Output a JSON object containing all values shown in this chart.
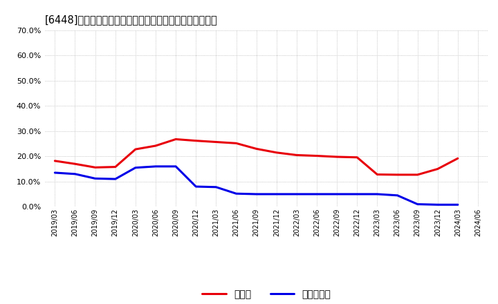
{
  "title": "[6448]　現預金、有利子負債の総資産に対する比率の推移",
  "background_color": "#ffffff",
  "grid_color": "#aaaaaa",
  "x_labels": [
    "2019/03",
    "2019/06",
    "2019/09",
    "2019/12",
    "2020/03",
    "2020/06",
    "2020/09",
    "2020/12",
    "2021/03",
    "2021/06",
    "2021/09",
    "2021/12",
    "2022/03",
    "2022/06",
    "2022/09",
    "2022/12",
    "2023/03",
    "2023/06",
    "2023/09",
    "2023/12",
    "2024/03",
    "2024/06"
  ],
  "cash_values": [
    0.182,
    0.17,
    0.156,
    0.158,
    0.228,
    0.242,
    0.268,
    0.262,
    0.257,
    0.252,
    0.23,
    0.215,
    0.205,
    0.202,
    0.198,
    0.196,
    0.128,
    0.127,
    0.127,
    0.15,
    0.192,
    null
  ],
  "debt_values": [
    0.135,
    0.13,
    0.112,
    0.11,
    0.155,
    0.16,
    0.16,
    0.08,
    0.078,
    0.052,
    0.05,
    0.05,
    0.05,
    0.05,
    0.05,
    0.05,
    0.05,
    0.045,
    0.01,
    0.008,
    0.008,
    null
  ],
  "cash_color": "#e8000a",
  "debt_color": "#0000e8",
  "cash_label": "現預金",
  "debt_label": "有利子負債",
  "ylim": [
    0.0,
    0.7
  ],
  "yticks": [
    0.0,
    0.1,
    0.2,
    0.3,
    0.4,
    0.5,
    0.6,
    0.7
  ],
  "line_width": 2.2
}
